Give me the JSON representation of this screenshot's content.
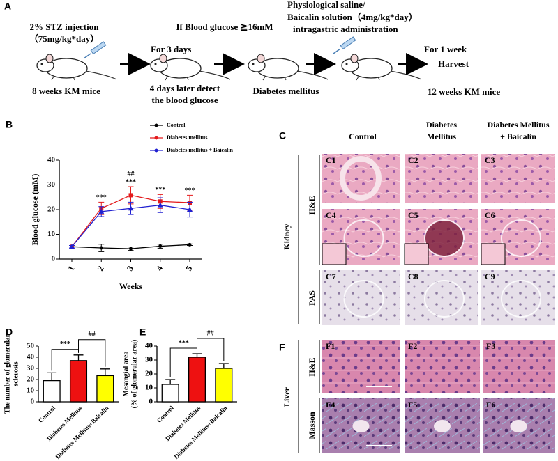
{
  "panel_a": {
    "label": "A",
    "texts": [
      "2% STZ  injection",
      "（75mg/kg*day）",
      "For 3 days",
      "If Blood glucose ≧16mM",
      "Physiological saline/",
      "Baicalin solution（4mg/kg*day）",
      "intragastric administration",
      "For 1 week",
      "Harvest",
      "8 weeks KM mice",
      "4 days later detect",
      "the blood glucose",
      "Diabetes mellitus",
      "12 weeks KM mice"
    ]
  },
  "panel_c": {
    "label": "C",
    "columns": [
      "Control",
      "Diabetes",
      "Mellitus",
      "Diabetes Mellitus",
      "+ Baicalin"
    ],
    "rows": [
      "H&E",
      "PAS"
    ],
    "organ": "Kidney",
    "images": [
      "C1",
      "C2",
      "C3",
      "C4",
      "C5",
      "C6",
      "C7",
      "C8",
      "C9"
    ]
  },
  "panel_f": {
    "label": "F",
    "rows": [
      "H&E",
      "Masson"
    ],
    "organ": "Liver",
    "images": [
      "F1",
      "F2",
      "F3",
      "F4",
      "F5",
      "F6"
    ]
  },
  "chart_data": [
    {
      "type": "line",
      "label": "B",
      "ylabel": "Blood glucose (mM)",
      "xlabel": "Weeks",
      "categories": [
        "1",
        "2",
        "3",
        "4",
        "5"
      ],
      "ylim": [
        0,
        40
      ],
      "yticks": [
        0,
        10,
        20,
        30,
        40
      ],
      "series": [
        {
          "name": "Control",
          "color": "#000000",
          "values": [
            5,
            4.5,
            4.2,
            5.2,
            5.8
          ],
          "errors": [
            0.5,
            1.5,
            0.7,
            0.8,
            0.3
          ]
        },
        {
          "name": "Diabetes mellitus",
          "color": "#e41a1c",
          "values": [
            5,
            20.5,
            25.8,
            23.3,
            22.8
          ],
          "errors": [
            0.5,
            2.5,
            3.5,
            2.8,
            3
          ]
        },
        {
          "name": "Diabetes mellitus + Baicalin",
          "color": "#2020d0",
          "values": [
            5,
            19.2,
            20.5,
            21.8,
            20
          ],
          "errors": [
            0.5,
            2,
            2.5,
            3,
            3
          ]
        }
      ],
      "annotations": [
        {
          "text": "***",
          "at": "2"
        },
        {
          "text": "***",
          "at": "3"
        },
        {
          "text": "##",
          "at": "3"
        },
        {
          "text": "***",
          "at": "4"
        },
        {
          "text": "***",
          "at": "5"
        }
      ]
    },
    {
      "type": "bar",
      "label": "D",
      "ylabel": [
        "The number of glomerular",
        "sclerosis"
      ],
      "categories": [
        "Control",
        "Diabetes Mellitus",
        "Diabetes Mellitus+Baicalin"
      ],
      "values": [
        19,
        37,
        23.5
      ],
      "errors": [
        7,
        5,
        6
      ],
      "colors": [
        "#ffffff",
        "#ee1111",
        "#ffff00"
      ],
      "ylim": [
        0,
        50
      ],
      "yticks": [
        0,
        10,
        20,
        30,
        40,
        50
      ],
      "annotations": [
        {
          "text": "***",
          "between": [
            0,
            1
          ]
        },
        {
          "text": "##",
          "between": [
            1,
            2
          ]
        }
      ]
    },
    {
      "type": "bar",
      "label": "E",
      "ylabel": [
        "Mesangial area",
        "(% of glomerular area)"
      ],
      "categories": [
        "Control",
        "Diabetes Mellitus",
        "Diabetes Mellitus+Baicalin"
      ],
      "values": [
        12.5,
        32,
        24
      ],
      "errors": [
        3.5,
        2.5,
        3.5
      ],
      "colors": [
        "#ffffff",
        "#ee1111",
        "#ffff00"
      ],
      "ylim": [
        0,
        40
      ],
      "yticks": [
        0,
        10,
        20,
        30,
        40
      ],
      "annotations": [
        {
          "text": "***",
          "between": [
            0,
            1
          ]
        },
        {
          "text": "##",
          "between": [
            1,
            2
          ]
        }
      ]
    }
  ]
}
